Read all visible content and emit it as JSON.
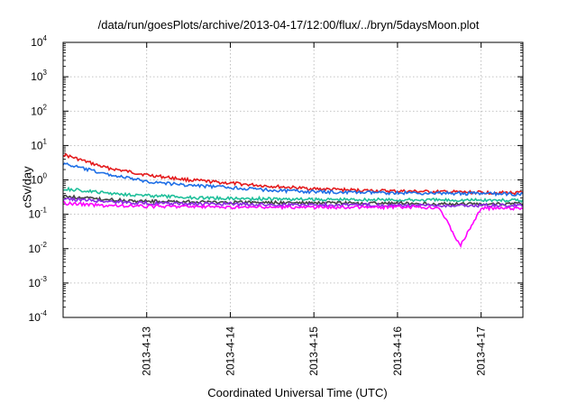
{
  "chart_data": {
    "type": "line",
    "title": "/data/run/goesPlots/archive/2013-04-17/12:00/flux/../bryn/5daysMoon.plot",
    "xlabel": "Coordinated Universal Time (UTC)",
    "ylabel": "cSv/day",
    "yscale": "log",
    "ylim": [
      0.0001,
      10000
    ],
    "y_ticks": [
      {
        "base": "10",
        "exp": "-4"
      },
      {
        "base": "10",
        "exp": "-3"
      },
      {
        "base": "10",
        "exp": "-2"
      },
      {
        "base": "10",
        "exp": "-1"
      },
      {
        "base": "10",
        "exp": "0"
      },
      {
        "base": "10",
        "exp": "1"
      },
      {
        "base": "10",
        "exp": "2"
      },
      {
        "base": "10",
        "exp": "3"
      },
      {
        "base": "10",
        "exp": "4"
      }
    ],
    "xlim": [
      "2013-04-12 00:00",
      "2013-04-17 12:00"
    ],
    "x_ticks": [
      "2013-4-13",
      "2013-4-14",
      "2013-4-15",
      "2013-4-16",
      "2013-4-17"
    ],
    "grid": true,
    "series": [
      {
        "color": "#e41a1c",
        "x": [
          "2013-04-12 00:00",
          "2013-04-12 12:00",
          "2013-04-13 00:00",
          "2013-04-13 12:00",
          "2013-04-14 00:00",
          "2013-04-14 12:00",
          "2013-04-15 00:00",
          "2013-04-15 12:00",
          "2013-04-16 00:00",
          "2013-04-16 12:00",
          "2013-04-17 00:00",
          "2013-04-17 12:00"
        ],
        "y": [
          5.5,
          2.3,
          1.4,
          1.0,
          0.8,
          0.65,
          0.55,
          0.5,
          0.47,
          0.45,
          0.43,
          0.42
        ]
      },
      {
        "color": "#1f6fe6",
        "x": [
          "2013-04-12 00:00",
          "2013-04-12 12:00",
          "2013-04-13 00:00",
          "2013-04-13 12:00",
          "2013-04-14 00:00",
          "2013-04-14 12:00",
          "2013-04-15 00:00",
          "2013-04-15 12:00",
          "2013-04-16 00:00",
          "2013-04-16 12:00",
          "2013-04-17 00:00",
          "2013-04-17 12:00"
        ],
        "y": [
          3.0,
          1.5,
          0.9,
          0.7,
          0.6,
          0.5,
          0.45,
          0.43,
          0.42,
          0.41,
          0.4,
          0.38
        ]
      },
      {
        "color": "#1fbf9a",
        "x": [
          "2013-04-12 00:00",
          "2013-04-12 12:00",
          "2013-04-13 00:00",
          "2013-04-13 12:00",
          "2013-04-14 00:00",
          "2013-04-14 12:00",
          "2013-04-15 00:00",
          "2013-04-15 12:00",
          "2013-04-16 00:00",
          "2013-04-16 12:00",
          "2013-04-17 00:00",
          "2013-04-17 12:00"
        ],
        "y": [
          0.55,
          0.42,
          0.35,
          0.31,
          0.29,
          0.28,
          0.27,
          0.27,
          0.26,
          0.26,
          0.26,
          0.25
        ]
      },
      {
        "color": "#444444",
        "x": [
          "2013-04-12 00:00",
          "2013-04-12 12:00",
          "2013-04-13 00:00",
          "2013-04-13 12:00",
          "2013-04-14 00:00",
          "2013-04-14 12:00",
          "2013-04-15 00:00",
          "2013-04-15 12:00",
          "2013-04-16 00:00",
          "2013-04-16 12:00",
          "2013-04-17 00:00",
          "2013-04-17 12:00"
        ],
        "y": [
          0.33,
          0.27,
          0.24,
          0.23,
          0.22,
          0.22,
          0.21,
          0.21,
          0.21,
          0.2,
          0.2,
          0.2
        ]
      },
      {
        "color": "#8a2be2",
        "x": [
          "2013-04-12 00:00",
          "2013-04-12 12:00",
          "2013-04-13 00:00",
          "2013-04-13 12:00",
          "2013-04-14 00:00",
          "2013-04-14 12:00",
          "2013-04-15 00:00",
          "2013-04-15 12:00",
          "2013-04-16 00:00",
          "2013-04-16 12:00",
          "2013-04-17 00:00",
          "2013-04-17 12:00"
        ],
        "y": [
          0.28,
          0.24,
          0.21,
          0.2,
          0.2,
          0.19,
          0.19,
          0.19,
          0.18,
          0.18,
          0.18,
          0.18
        ]
      },
      {
        "color": "#ff00ff",
        "x": [
          "2013-04-12 00:00",
          "2013-04-12 12:00",
          "2013-04-13 00:00",
          "2013-04-13 12:00",
          "2013-04-14 00:00",
          "2013-04-14 12:00",
          "2013-04-15 00:00",
          "2013-04-15 12:00",
          "2013-04-16 00:00",
          "2013-04-16 12:00",
          "2013-04-16 18:00",
          "2013-04-17 00:00",
          "2013-04-17 12:00"
        ],
        "y": [
          0.21,
          0.18,
          0.17,
          0.17,
          0.16,
          0.16,
          0.16,
          0.16,
          0.16,
          0.16,
          0.012,
          0.15,
          0.15
        ]
      }
    ]
  }
}
